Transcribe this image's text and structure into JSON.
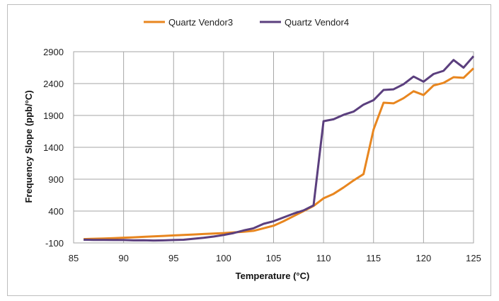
{
  "chart_data": {
    "type": "line",
    "xlabel": "Temperature (°C)",
    "ylabel": "Frequency Slope (ppb/°C)",
    "xlim": [
      85,
      125
    ],
    "ylim": [
      -100,
      2900
    ],
    "x_ticks": [
      85,
      90,
      95,
      100,
      105,
      110,
      115,
      120,
      125
    ],
    "y_ticks": [
      -100,
      400,
      900,
      1400,
      1900,
      2400,
      2900
    ],
    "grid": true,
    "legend_position": "top",
    "series": [
      {
        "name": "Quartz Vendor3",
        "color": "#e8861f",
        "points": [
          [
            86,
            -40
          ],
          [
            87,
            -35
          ],
          [
            88,
            -30
          ],
          [
            89,
            -25
          ],
          [
            90,
            -18
          ],
          [
            91,
            -12
          ],
          [
            92,
            -5
          ],
          [
            93,
            2
          ],
          [
            94,
            10
          ],
          [
            95,
            18
          ],
          [
            96,
            25
          ],
          [
            97,
            32
          ],
          [
            98,
            40
          ],
          [
            99,
            48
          ],
          [
            100,
            55
          ],
          [
            101,
            65
          ],
          [
            102,
            75
          ],
          [
            103,
            90
          ],
          [
            104,
            130
          ],
          [
            105,
            170
          ],
          [
            106,
            240
          ],
          [
            107,
            320
          ],
          [
            108,
            400
          ],
          [
            109,
            480
          ],
          [
            110,
            600
          ],
          [
            111,
            670
          ],
          [
            112,
            770
          ],
          [
            113,
            880
          ],
          [
            114,
            980
          ],
          [
            115,
            1680
          ],
          [
            116,
            2100
          ],
          [
            117,
            2090
          ],
          [
            118,
            2170
          ],
          [
            119,
            2280
          ],
          [
            120,
            2220
          ],
          [
            121,
            2370
          ],
          [
            122,
            2410
          ],
          [
            123,
            2500
          ],
          [
            124,
            2490
          ],
          [
            125,
            2640
          ]
        ]
      },
      {
        "name": "Quartz Vendor4",
        "color": "#5b3f7e",
        "points": [
          [
            86,
            -50
          ],
          [
            87,
            -52
          ],
          [
            88,
            -53
          ],
          [
            89,
            -54
          ],
          [
            90,
            -55
          ],
          [
            91,
            -60
          ],
          [
            92,
            -58
          ],
          [
            93,
            -62
          ],
          [
            94,
            -60
          ],
          [
            95,
            -55
          ],
          [
            96,
            -50
          ],
          [
            97,
            -35
          ],
          [
            98,
            -20
          ],
          [
            99,
            0
          ],
          [
            100,
            25
          ],
          [
            101,
            55
          ],
          [
            102,
            95
          ],
          [
            103,
            130
          ],
          [
            104,
            200
          ],
          [
            105,
            240
          ],
          [
            106,
            300
          ],
          [
            107,
            360
          ],
          [
            108,
            410
          ],
          [
            109,
            490
          ],
          [
            110,
            1810
          ],
          [
            111,
            1840
          ],
          [
            112,
            1910
          ],
          [
            113,
            1960
          ],
          [
            114,
            2070
          ],
          [
            115,
            2140
          ],
          [
            116,
            2300
          ],
          [
            117,
            2310
          ],
          [
            118,
            2390
          ],
          [
            119,
            2510
          ],
          [
            120,
            2430
          ],
          [
            121,
            2550
          ],
          [
            122,
            2600
          ],
          [
            123,
            2770
          ],
          [
            124,
            2650
          ],
          [
            125,
            2830
          ]
        ]
      }
    ]
  }
}
